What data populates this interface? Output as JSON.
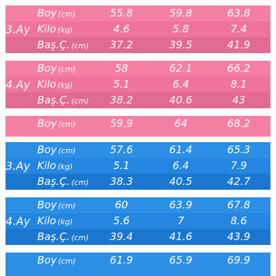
{
  "colors": {
    "girls_row_1": "#f57fa3",
    "girls_row_2": "#ef749b",
    "girls_row_3": "#e06a90",
    "boys_row_1": "#2b8fe6",
    "boys_row_2": "#2486e0",
    "boys_row_3": "#1b76cf",
    "separator": "#ffffff"
  },
  "chart_data": {
    "type": "table",
    "blocks": [
      {
        "group": "girls",
        "age": "3.Ay",
        "rows": [
          {
            "label": "Boy",
            "unit": "(cm)",
            "values": [
              "55.8",
              "59.8",
              "63.8"
            ]
          },
          {
            "label": "Kilo",
            "unit": "(kg)",
            "values": [
              "4.6",
              "5.8",
              "7.4"
            ]
          },
          {
            "label": "Baş.Ç.",
            "unit": "(cm)",
            "values": [
              "37.2",
              "39.5",
              "41.9"
            ]
          }
        ]
      },
      {
        "group": "girls",
        "age": "4.Ay",
        "rows": [
          {
            "label": "Boy",
            "unit": "(cm)",
            "values": [
              "58",
              "62.1",
              "66.2"
            ]
          },
          {
            "label": "Kilo",
            "unit": "(kg)",
            "values": [
              "5.1",
              "6.4",
              "8.1"
            ]
          },
          {
            "label": "Baş.Ç.",
            "unit": "(cm)",
            "values": [
              "38.2",
              "40.6",
              "43"
            ]
          }
        ]
      },
      {
        "group": "girls",
        "age": "",
        "rows": [
          {
            "label": "Boy",
            "unit": "(cm)",
            "values": [
              "59.9",
              "64",
              "68.2"
            ]
          }
        ]
      },
      {
        "group": "boys",
        "age": "3.Ay",
        "rows": [
          {
            "label": "Boy",
            "unit": "(cm)",
            "values": [
              "57.6",
              "61.4",
              "65.3"
            ]
          },
          {
            "label": "Kilo",
            "unit": "(kg)",
            "values": [
              "5.1",
              "6.4",
              "7.9"
            ]
          },
          {
            "label": "Baş.Ç.",
            "unit": "(cm)",
            "values": [
              "38.3",
              "40.5",
              "42.7"
            ]
          }
        ]
      },
      {
        "group": "boys",
        "age": "4.Ay",
        "rows": [
          {
            "label": "Boy",
            "unit": "(cm)",
            "values": [
              "60",
              "63.9",
              "67.8"
            ]
          },
          {
            "label": "Kilo",
            "unit": "(kg)",
            "values": [
              "5.6",
              "7",
              "8.6"
            ]
          },
          {
            "label": "Baş.Ç.",
            "unit": "(cm)",
            "values": [
              "39.4",
              "41.6",
              "43.9"
            ]
          }
        ]
      },
      {
        "group": "boys",
        "age": "",
        "rows": [
          {
            "label": "Boy",
            "unit": "(cm)",
            "values": [
              "61.9",
              "65.9",
              "69.9"
            ]
          }
        ]
      }
    ]
  }
}
